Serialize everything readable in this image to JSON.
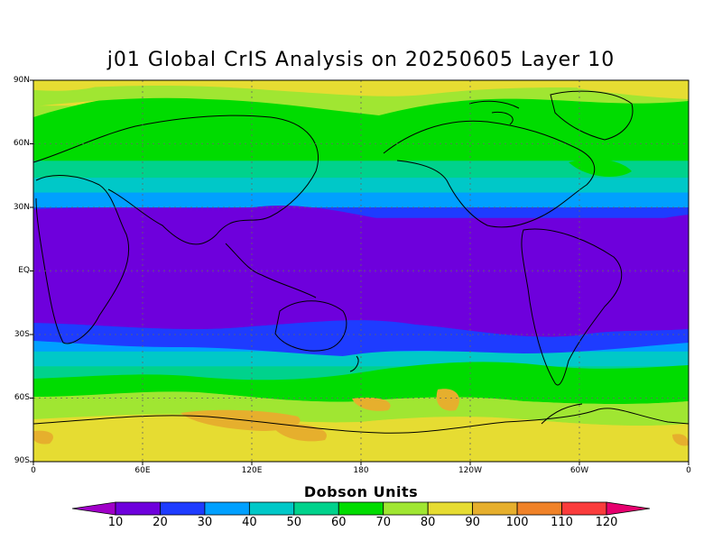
{
  "title": "j01 Global CrIS Analysis on 20250605 Layer 10",
  "latitude_labels": [
    "90N",
    "60N",
    "30N",
    "EQ",
    "30S",
    "60S",
    "90S"
  ],
  "longitude_labels": [
    "0",
    "60E",
    "120E",
    "180",
    "120W",
    "60W",
    "0"
  ],
  "legend": {
    "title": "Dobson Units",
    "levels": [
      "10",
      "20",
      "30",
      "40",
      "50",
      "60",
      "70",
      "80",
      "90",
      "100",
      "110",
      "120"
    ],
    "colors": [
      "#a000c8",
      "#6e00dc",
      "#1e3cff",
      "#00a0ff",
      "#00c8c8",
      "#00d28c",
      "#00dc00",
      "#a0e632",
      "#e6dc32",
      "#e6af2d",
      "#f08228",
      "#fa3c3c",
      "#e6006e"
    ]
  },
  "map_fields": {
    "bands": [
      {
        "lat": 90,
        "color": "#e6dc32"
      },
      {
        "lat": 78,
        "color": "#a0e632"
      },
      {
        "lat": 65,
        "color": "#00dc00"
      },
      {
        "lat": 52,
        "color": "#00d28c"
      },
      {
        "lat": 44,
        "color": "#00c8c8"
      },
      {
        "lat": 37,
        "color": "#00a0ff"
      },
      {
        "lat": 30,
        "color": "#1e3cff"
      },
      {
        "lat": 25,
        "color": "#6e00dc"
      },
      {
        "lat": -25,
        "color": "#1e3cff"
      },
      {
        "lat": -31,
        "color": "#00a0ff"
      },
      {
        "lat": -38,
        "color": "#00c8c8"
      },
      {
        "lat": -45,
        "color": "#00d28c"
      },
      {
        "lat": -53,
        "color": "#00dc00"
      },
      {
        "lat": -58,
        "color": "#a0e632"
      },
      {
        "lat": -70,
        "color": "#e6dc32"
      }
    ]
  }
}
